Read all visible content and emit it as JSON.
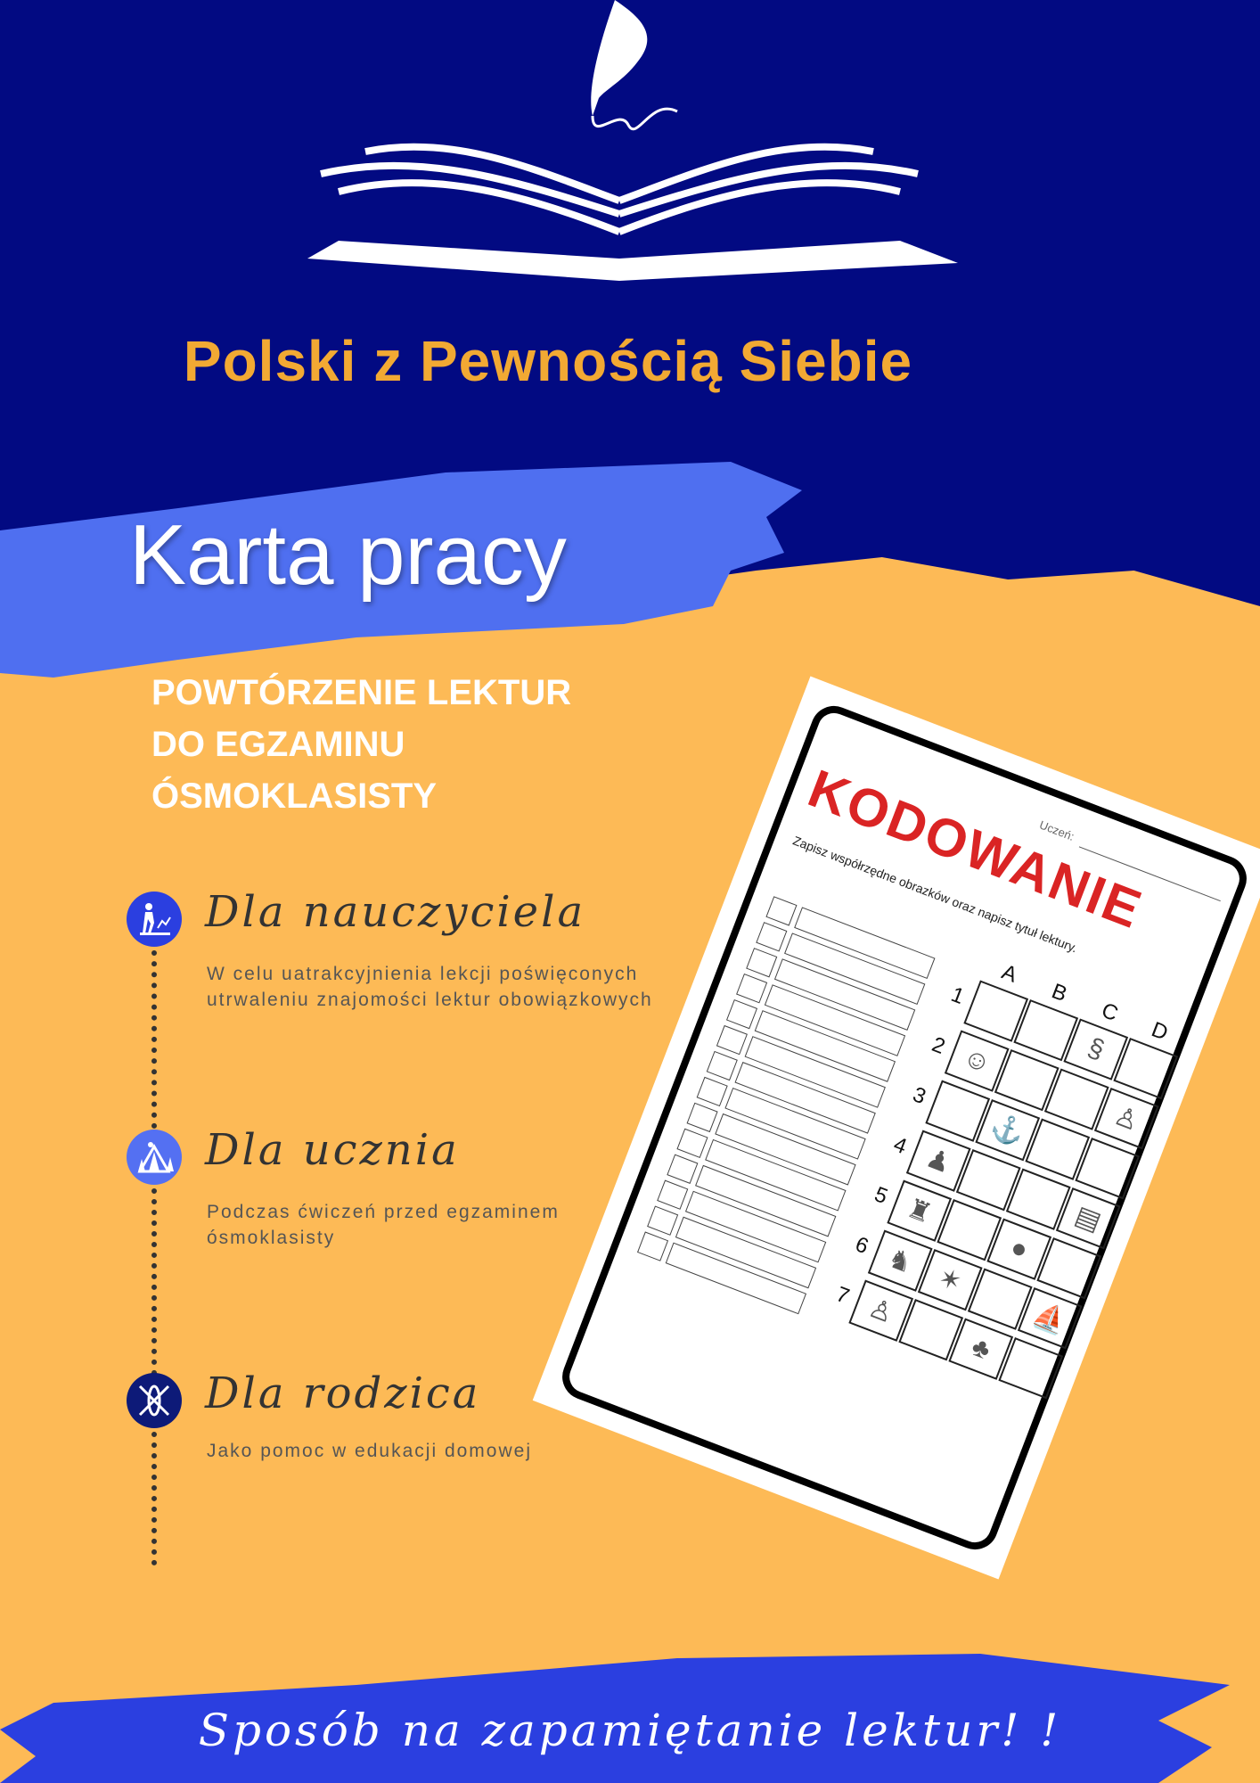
{
  "brand": {
    "name": "Polski z Pewnością Siebie",
    "logo": "open-book-quill-logo"
  },
  "header": {
    "title": "Karta pracy",
    "subtitle_lines": [
      "POWTÓRZENIE LEKTUR",
      "DO EGZAMINU",
      "ÓSMOKLASISTY"
    ]
  },
  "audiences": [
    {
      "heading": "Dla nauczyciela",
      "text_lines": [
        "W celu uatrakcyjnienia lekcji poświęconych",
        "utrwaleniu znajomości lektur obowiązkowych"
      ],
      "icon": "hiker-icon",
      "color": "#2B3FE0"
    },
    {
      "heading": "Dla ucznia",
      "text_lines": [
        "Podczas ćwiczeń przed egzaminem",
        "ósmoklasisty"
      ],
      "icon": "tent-icon",
      "color": "#5470F2"
    },
    {
      "heading": "Dla rodzica",
      "text_lines": [
        "Jako pomoc w edukacji domowej"
      ],
      "icon": "kayak-icon",
      "color": "#0D1A78"
    }
  ],
  "worksheet": {
    "title": "KODOWANIE",
    "student_label": "Uczeń:",
    "instruction": "Zapisz współrzędne obrazków oraz napisz tytuł lektury.",
    "columns": [
      "A",
      "B",
      "C",
      "D"
    ],
    "rows": [
      "1",
      "2",
      "3",
      "4",
      "5",
      "6",
      "7"
    ],
    "answer_rows": 14,
    "pictures": {
      "C1": "snake",
      "A2": "head",
      "D2": "figure",
      "B3": "anchor",
      "A4": "silhouette",
      "D4": "card",
      "A5": "castle",
      "C5": "bear",
      "A6": "knight",
      "B6": "explosion",
      "D6": "ship",
      "A7": "boy",
      "C7": "tree"
    }
  },
  "footer": {
    "slogan": "Sposób na zapamiętanie lektur! !"
  },
  "colors": {
    "navy": "#020A82",
    "yellow": "#FDBA56",
    "brush": "#4F6FF0",
    "brand_text": "#F2A933",
    "title_red": "#DA2424"
  }
}
